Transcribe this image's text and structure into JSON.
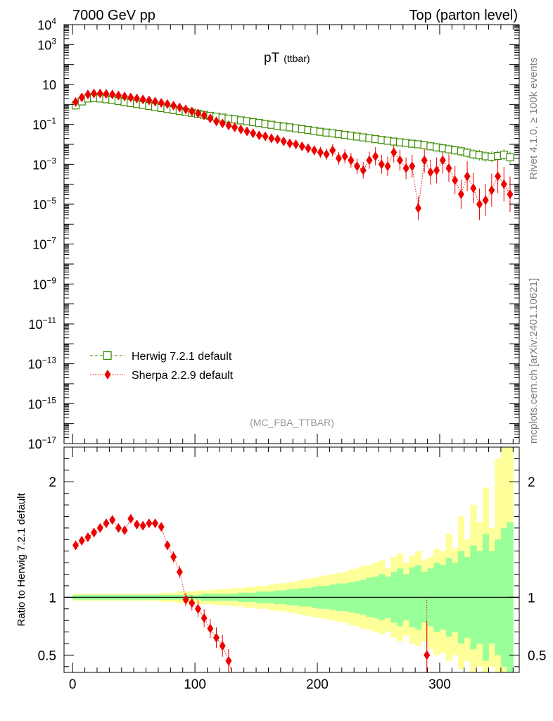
{
  "header": {
    "left": "7000 GeV pp",
    "right": "Top (parton level)"
  },
  "side_labels": {
    "rivet": "Rivet 4.1.0, ≥ 100k events",
    "mcplots": "mcplots.cern.ch [arXiv:2401.10621]"
  },
  "chart_data": [
    {
      "type": "scatter",
      "title": "pT",
      "subtitle": "(ttbar)",
      "watermark": "(MC_FBA_TTBAR)",
      "yscale": "log",
      "xlim": [
        -7,
        365
      ],
      "ylim_exp": [
        -17,
        4
      ],
      "y_ticks": [
        {
          "base": "10",
          "exp": "4",
          "v": 4
        },
        {
          "base": "10",
          "exp": "3",
          "v": 3
        },
        {
          "base": "10",
          "exp": "",
          "v": 1
        },
        {
          "base": "10",
          "exp": "−1",
          "v": -1
        },
        {
          "base": "10",
          "exp": "−3",
          "v": -3
        },
        {
          "base": "10",
          "exp": "−5",
          "v": -5
        },
        {
          "base": "10",
          "exp": "−7",
          "v": -7
        },
        {
          "base": "10",
          "exp": "−9",
          "v": -9
        },
        {
          "base": "10",
          "exp": "−11",
          "v": -11
        },
        {
          "base": "10",
          "exp": "−13",
          "v": -13
        },
        {
          "base": "10",
          "exp": "−15",
          "v": -15
        },
        {
          "base": "10",
          "exp": "−17",
          "v": -17
        }
      ],
      "legend": [
        {
          "name": "Herwig 7.2.1 default",
          "color": "#3c8c00",
          "marker": "open-square",
          "line": "dashed"
        },
        {
          "name": "Sherpa 2.2.9 default",
          "color": "#ee0000",
          "marker": "filled-diamond",
          "line": "dotted"
        }
      ],
      "series": [
        {
          "name": "Herwig 7.2.1 default",
          "color": "#3c8c00",
          "x": [
            2.5,
            7.5,
            12.5,
            17.5,
            22.5,
            27.5,
            32.5,
            37.5,
            42.5,
            47.5,
            52.5,
            57.5,
            62.5,
            67.5,
            72.5,
            77.5,
            82.5,
            87.5,
            92.5,
            97.5,
            102.5,
            107.5,
            112.5,
            117.5,
            122.5,
            127.5,
            132.5,
            137.5,
            142.5,
            147.5,
            152.5,
            157.5,
            162.5,
            167.5,
            172.5,
            177.5,
            182.5,
            187.5,
            192.5,
            197.5,
            202.5,
            207.5,
            212.5,
            217.5,
            222.5,
            227.5,
            232.5,
            237.5,
            242.5,
            247.5,
            252.5,
            257.5,
            262.5,
            267.5,
            272.5,
            277.5,
            282.5,
            287.5,
            292.5,
            297.5,
            302.5,
            307.5,
            312.5,
            317.5,
            322.5,
            327.5,
            332.5,
            337.5,
            342.5,
            347.5,
            352.5,
            357.5
          ],
          "log10y": [
            -0.05,
            0.15,
            0.3,
            0.32,
            0.3,
            0.26,
            0.22,
            0.17,
            0.12,
            0.07,
            0.02,
            -0.03,
            -0.08,
            -0.13,
            -0.18,
            -0.23,
            -0.28,
            -0.33,
            -0.38,
            -0.42,
            -0.47,
            -0.52,
            -0.57,
            -0.61,
            -0.66,
            -0.71,
            -0.75,
            -0.8,
            -0.84,
            -0.89,
            -0.93,
            -0.98,
            -1.02,
            -1.07,
            -1.11,
            -1.15,
            -1.2,
            -1.24,
            -1.28,
            -1.32,
            -1.37,
            -1.41,
            -1.45,
            -1.49,
            -1.53,
            -1.57,
            -1.61,
            -1.65,
            -1.7,
            -1.74,
            -1.78,
            -1.82,
            -1.86,
            -1.9,
            -1.93,
            -1.97,
            -2.0,
            -2.05,
            -2.1,
            -2.15,
            -2.2,
            -2.25,
            -2.3,
            -2.35,
            -2.42,
            -2.5,
            -2.55,
            -2.6,
            -2.62,
            -2.58,
            -2.52,
            -2.65
          ]
        },
        {
          "name": "Sherpa 2.2.9 default",
          "color": "#ee0000",
          "x": [
            2.5,
            7.5,
            12.5,
            17.5,
            22.5,
            27.5,
            32.5,
            37.5,
            42.5,
            47.5,
            52.5,
            57.5,
            62.5,
            67.5,
            72.5,
            77.5,
            82.5,
            87.5,
            92.5,
            97.5,
            102.5,
            107.5,
            112.5,
            117.5,
            122.5,
            127.5,
            132.5,
            137.5,
            142.5,
            147.5,
            152.5,
            157.5,
            162.5,
            167.5,
            172.5,
            177.5,
            182.5,
            187.5,
            192.5,
            197.5,
            202.5,
            207.5,
            212.5,
            217.5,
            222.5,
            227.5,
            232.5,
            237.5,
            242.5,
            247.5,
            252.5,
            257.5,
            262.5,
            267.5,
            272.5,
            277.5,
            282.5,
            287.5,
            292.5,
            297.5,
            302.5,
            307.5,
            312.5,
            317.5,
            322.5,
            327.5,
            332.5,
            337.5,
            342.5,
            347.5,
            352.5,
            357.5
          ],
          "log10y": [
            0.12,
            0.35,
            0.5,
            0.55,
            0.55,
            0.53,
            0.5,
            0.45,
            0.4,
            0.35,
            0.3,
            0.25,
            0.2,
            0.14,
            0.08,
            0.02,
            -0.06,
            -0.15,
            -0.25,
            -0.35,
            -0.45,
            -0.55,
            -0.7,
            -0.85,
            -0.95,
            -1.05,
            -1.15,
            -1.25,
            -1.35,
            -1.45,
            -1.55,
            -1.6,
            -1.7,
            -1.75,
            -1.85,
            -1.95,
            -2.0,
            -2.1,
            -2.2,
            -2.3,
            -2.4,
            -2.5,
            -2.3,
            -2.7,
            -2.6,
            -2.8,
            -3.1,
            -3.3,
            -2.8,
            -2.6,
            -3.0,
            -3.1,
            -2.4,
            -2.8,
            -3.2,
            -3.1,
            -5.2,
            -2.8,
            -3.4,
            -3.3,
            -2.8,
            -3.2,
            -3.8,
            -4.5,
            -3.6,
            -4.2,
            -5.0,
            -4.8,
            -4.3,
            -3.6,
            -4.0,
            -4.5
          ]
        }
      ]
    },
    {
      "type": "scatter",
      "ylabel": "Ratio to Herwig 7.2.1 default",
      "ylim": [
        0.35,
        2.3
      ],
      "xlim": [
        -7,
        365
      ],
      "y_ticks": [
        {
          "label": "2",
          "v": 2
        },
        {
          "label": "1",
          "v": 1
        },
        {
          "label": "0.5",
          "v": 0.5
        }
      ],
      "x_ticks": [
        {
          "label": "0",
          "v": 0
        },
        {
          "label": "100",
          "v": 100
        },
        {
          "label": "200",
          "v": 200
        },
        {
          "label": "300",
          "v": 300
        }
      ],
      "reference_line": 1,
      "band_colors": {
        "stat": "#99ff99",
        "total": "#ffff99"
      },
      "bands": {
        "x": [
          2.5,
          7.5,
          12.5,
          17.5,
          22.5,
          27.5,
          32.5,
          37.5,
          42.5,
          47.5,
          52.5,
          57.5,
          62.5,
          67.5,
          72.5,
          77.5,
          82.5,
          87.5,
          92.5,
          97.5,
          102.5,
          107.5,
          112.5,
          117.5,
          122.5,
          127.5,
          132.5,
          137.5,
          142.5,
          147.5,
          152.5,
          157.5,
          162.5,
          167.5,
          172.5,
          177.5,
          182.5,
          187.5,
          192.5,
          197.5,
          202.5,
          207.5,
          212.5,
          217.5,
          222.5,
          227.5,
          232.5,
          237.5,
          242.5,
          247.5,
          252.5,
          257.5,
          262.5,
          267.5,
          272.5,
          277.5,
          282.5,
          287.5,
          292.5,
          297.5,
          302.5,
          307.5,
          312.5,
          317.5,
          322.5,
          327.5,
          332.5,
          337.5,
          342.5,
          347.5,
          352.5,
          357.5
        ],
        "stat": [
          0.02,
          0.02,
          0.02,
          0.02,
          0.02,
          0.02,
          0.02,
          0.02,
          0.02,
          0.02,
          0.02,
          0.02,
          0.02,
          0.02,
          0.02,
          0.02,
          0.02,
          0.02,
          0.02,
          0.02,
          0.02,
          0.03,
          0.03,
          0.03,
          0.03,
          0.03,
          0.03,
          0.04,
          0.04,
          0.04,
          0.05,
          0.05,
          0.05,
          0.06,
          0.06,
          0.07,
          0.07,
          0.08,
          0.08,
          0.09,
          0.1,
          0.1,
          0.11,
          0.12,
          0.12,
          0.13,
          0.14,
          0.15,
          0.17,
          0.18,
          0.2,
          0.18,
          0.22,
          0.25,
          0.2,
          0.26,
          0.28,
          0.22,
          0.25,
          0.3,
          0.28,
          0.34,
          0.3,
          0.4,
          0.35,
          0.45,
          0.4,
          0.55,
          0.4,
          0.5,
          0.6,
          0.65
        ],
        "total_up": [
          0.03,
          0.03,
          0.03,
          0.03,
          0.03,
          0.03,
          0.03,
          0.03,
          0.03,
          0.03,
          0.03,
          0.03,
          0.03,
          0.03,
          0.04,
          0.04,
          0.04,
          0.05,
          0.05,
          0.05,
          0.06,
          0.06,
          0.06,
          0.07,
          0.07,
          0.07,
          0.08,
          0.08,
          0.09,
          0.09,
          0.1,
          0.1,
          0.11,
          0.12,
          0.12,
          0.13,
          0.14,
          0.15,
          0.16,
          0.17,
          0.18,
          0.19,
          0.2,
          0.21,
          0.22,
          0.24,
          0.25,
          0.27,
          0.28,
          0.3,
          0.32,
          0.25,
          0.35,
          0.38,
          0.3,
          0.36,
          0.4,
          0.32,
          0.35,
          0.42,
          0.4,
          0.55,
          0.42,
          0.7,
          0.5,
          0.8,
          0.65,
          0.95,
          0.6,
          1.2,
          1.3,
          1.3
        ],
        "total_down": [
          0.03,
          0.03,
          0.03,
          0.03,
          0.03,
          0.03,
          0.03,
          0.03,
          0.03,
          0.03,
          0.03,
          0.03,
          0.03,
          0.03,
          0.04,
          0.04,
          0.04,
          0.05,
          0.05,
          0.05,
          0.06,
          0.06,
          0.06,
          0.07,
          0.07,
          0.07,
          0.08,
          0.08,
          0.09,
          0.09,
          0.1,
          0.1,
          0.11,
          0.12,
          0.12,
          0.13,
          0.14,
          0.15,
          0.16,
          0.17,
          0.18,
          0.19,
          0.2,
          0.21,
          0.22,
          0.24,
          0.25,
          0.27,
          0.28,
          0.3,
          0.32,
          0.3,
          0.35,
          0.38,
          0.33,
          0.4,
          0.42,
          0.38,
          0.45,
          0.5,
          0.48,
          0.55,
          0.5,
          0.62,
          0.55,
          0.65,
          0.6,
          0.65,
          0.6,
          0.65,
          0.65,
          0.65
        ]
      },
      "series": [
        {
          "name": "Sherpa 2.2.9 default",
          "color": "#ee0000",
          "x": [
            2.5,
            7.5,
            12.5,
            17.5,
            22.5,
            27.5,
            32.5,
            37.5,
            42.5,
            47.5,
            52.5,
            57.5,
            62.5,
            67.5,
            72.5,
            77.5,
            82.5,
            87.5,
            92.5,
            97.5,
            102.5,
            107.5,
            112.5,
            117.5,
            122.5,
            127.5,
            289.5
          ],
          "values": [
            1.45,
            1.49,
            1.52,
            1.56,
            1.6,
            1.64,
            1.67,
            1.6,
            1.58,
            1.68,
            1.63,
            1.62,
            1.64,
            1.64,
            1.61,
            1.45,
            1.35,
            1.22,
            0.98,
            0.95,
            0.9,
            0.82,
            0.73,
            0.65,
            0.58,
            0.45,
            0.5
          ]
        }
      ]
    }
  ]
}
